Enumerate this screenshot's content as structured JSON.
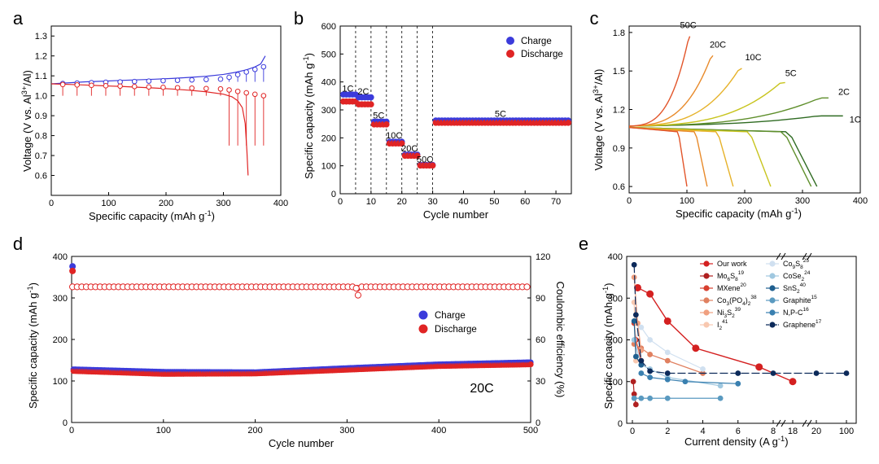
{
  "colors": {
    "charge": "#3b3bdb",
    "discharge": "#e02424",
    "axis": "#000000"
  },
  "chart_data": [
    {
      "id": "a",
      "type": "line",
      "panel_letter": "a",
      "xlabel": "Specific capacity (mAh g⁻¹)",
      "ylabel": "Voltage (V vs. Al³⁺/Al)",
      "xlim": [
        0,
        400
      ],
      "ylim": [
        0.5,
        1.35
      ],
      "xticks": [
        0,
        100,
        200,
        300,
        400
      ],
      "yticks": [
        0.6,
        0.7,
        0.8,
        0.9,
        1.0,
        1.1,
        1.2,
        1.3
      ],
      "series": [
        {
          "name": "Charge",
          "color": "#3b3bdb",
          "x": [
            0,
            30,
            60,
            90,
            120,
            150,
            180,
            210,
            240,
            270,
            300,
            320,
            340,
            355,
            365,
            373
          ],
          "y": [
            1.06,
            1.065,
            1.07,
            1.073,
            1.077,
            1.08,
            1.083,
            1.087,
            1.092,
            1.098,
            1.107,
            1.117,
            1.13,
            1.145,
            1.16,
            1.2
          ]
        },
        {
          "name": "Discharge",
          "color": "#e02424",
          "x": [
            0,
            30,
            60,
            90,
            120,
            150,
            180,
            210,
            240,
            270,
            300,
            315,
            325,
            333,
            338,
            341,
            343
          ],
          "y": [
            1.06,
            1.057,
            1.054,
            1.05,
            1.047,
            1.043,
            1.039,
            1.034,
            1.028,
            1.02,
            1.008,
            0.995,
            0.975,
            0.94,
            0.86,
            0.72,
            0.6
          ]
        }
      ]
    },
    {
      "id": "b",
      "type": "scatter",
      "panel_letter": "b",
      "xlabel": "Cycle number",
      "ylabel": "Specific capacity (mAh g⁻¹)",
      "xlim": [
        0,
        75
      ],
      "ylim": [
        0,
        600
      ],
      "xticks": [
        0,
        10,
        20,
        30,
        40,
        50,
        60,
        70
      ],
      "yticks": [
        0,
        100,
        200,
        300,
        400,
        500,
        600
      ],
      "dividers": [
        5,
        10,
        15,
        20,
        25,
        30
      ],
      "segments": [
        {
          "rate": "1C",
          "start": 1,
          "end": 5,
          "charge": 355,
          "discharge": 330
        },
        {
          "rate": "2C",
          "start": 6,
          "end": 10,
          "charge": 345,
          "discharge": 320
        },
        {
          "rate": "5C",
          "start": 11,
          "end": 15,
          "charge": 258,
          "discharge": 248
        },
        {
          "rate": "10C",
          "start": 16,
          "end": 20,
          "charge": 186,
          "discharge": 180
        },
        {
          "rate": "20C",
          "start": 21,
          "end": 25,
          "charge": 140,
          "discharge": 136
        },
        {
          "rate": "50C",
          "start": 26,
          "end": 30,
          "charge": 103,
          "discharge": 101
        },
        {
          "rate": "5C",
          "start": 31,
          "end": 74,
          "charge": 262,
          "discharge": 254
        }
      ],
      "rate_labels": [
        {
          "text": "1C",
          "x": 2.5,
          "y": 365
        },
        {
          "text": "2C",
          "x": 7.5,
          "y": 355
        },
        {
          "text": "5C",
          "x": 12.5,
          "y": 270
        },
        {
          "text": "10C",
          "x": 17.5,
          "y": 198
        },
        {
          "text": "20C",
          "x": 22.5,
          "y": 152
        },
        {
          "text": "50C",
          "x": 27.5,
          "y": 112
        },
        {
          "text": "5C",
          "x": 52,
          "y": 275
        }
      ],
      "legend": [
        "Charge",
        "Discharge"
      ]
    },
    {
      "id": "c",
      "type": "line",
      "panel_letter": "c",
      "xlabel": "Specific capacity (mAh g⁻¹)",
      "ylabel": "Voltage (V vs. Al³⁺/Al)",
      "xlim": [
        0,
        400
      ],
      "ylim": [
        0.55,
        1.85
      ],
      "xticks": [
        0,
        100,
        200,
        300,
        400
      ],
      "yticks": [
        0.6,
        0.9,
        1.2,
        1.5,
        1.8
      ],
      "series": [
        {
          "name": "1C",
          "color": "#2f6b22",
          "charge_cap": 370,
          "charge_end": 1.15,
          "discharge_cap": 325
        },
        {
          "name": "2C",
          "color": "#5f8f2c",
          "charge_cap": 345,
          "charge_end": 1.29,
          "discharge_cap": 315
        },
        {
          "name": "5C",
          "color": "#c8c41e",
          "charge_cap": 270,
          "charge_end": 1.41,
          "discharge_cap": 245
        },
        {
          "name": "10C",
          "color": "#e6b22a",
          "charge_cap": 195,
          "charge_end": 1.52,
          "discharge_cap": 180
        },
        {
          "name": "20C",
          "color": "#e88a2a",
          "charge_cap": 145,
          "charge_end": 1.62,
          "discharge_cap": 135
        },
        {
          "name": "50C",
          "color": "#e2552a",
          "charge_cap": 105,
          "charge_end": 1.77,
          "discharge_cap": 100
        }
      ]
    },
    {
      "id": "d",
      "type": "scatter",
      "panel_letter": "d",
      "xlabel": "Cycle number",
      "ylabel": "Specific capacity (mAh g⁻¹)",
      "y2label": "Coulombic efficiency (%)",
      "xlim": [
        0,
        500
      ],
      "ylim": [
        0,
        400
      ],
      "y2lim": [
        0,
        120
      ],
      "xticks": [
        0,
        100,
        200,
        300,
        400,
        500
      ],
      "yticks": [
        0,
        100,
        200,
        300,
        400
      ],
      "y2ticks": [
        0,
        30,
        60,
        90,
        120
      ],
      "charge_points": [
        [
          1,
          376
        ],
        [
          2,
          128
        ],
        [
          100,
          122
        ],
        [
          200,
          121
        ],
        [
          300,
          131
        ],
        [
          400,
          140
        ],
        [
          500,
          145
        ]
      ],
      "discharge_points": [
        [
          1,
          365
        ],
        [
          2,
          124
        ],
        [
          100,
          117
        ],
        [
          200,
          118
        ],
        [
          300,
          127
        ],
        [
          400,
          136
        ],
        [
          500,
          140
        ]
      ],
      "coulombic_efficiency": {
        "typical": 98,
        "dips": [
          [
            310,
            97
          ],
          [
            312,
            92
          ]
        ]
      },
      "annotation": "20C",
      "legend": [
        "Charge",
        "Discharge"
      ]
    },
    {
      "id": "e",
      "type": "scatter",
      "panel_letter": "e",
      "xlabel": "Current density (A g⁻¹)",
      "ylabel": "Specific capacity (mAh g⁻¹)",
      "ylim": [
        0,
        400
      ],
      "yticks": [
        0,
        100,
        200,
        300,
        400
      ],
      "x_segments": [
        {
          "range": [
            0,
            18
          ],
          "ticks": [
            0,
            2,
            4,
            6,
            8,
            18
          ]
        },
        {
          "range": [
            18,
            100
          ],
          "ticks": [
            20,
            100
          ]
        }
      ],
      "series": [
        {
          "name": "Our work",
          "sup": "",
          "sub": "",
          "color": "#d42020",
          "x": [
            0.3,
            1,
            2,
            3.6,
            7.2,
            18
          ],
          "y": [
            325,
            310,
            245,
            180,
            135,
            100
          ]
        },
        {
          "name": "Mo",
          "sub": "6",
          "name2": "S",
          "sub2": "8",
          "sup": "19",
          "color": "#b02020",
          "x": [
            0.05,
            0.1,
            0.2
          ],
          "y": [
            100,
            70,
            45
          ]
        },
        {
          "name": "MXene",
          "sup": "20",
          "sub": "",
          "color": "#d74030",
          "x": [
            0.1,
            0.2,
            0.5
          ],
          "y": [
            240,
            200,
            150
          ]
        },
        {
          "name": "Co",
          "sub": "3",
          "name2": "(PO",
          "sub2": "4",
          "name3": ")",
          "sub3": "2",
          "sup": "38",
          "color": "#e08060",
          "x": [
            0.1,
            0.5,
            1,
            2,
            4
          ],
          "y": [
            190,
            180,
            165,
            150,
            120
          ]
        },
        {
          "name": "Ni",
          "sub": "3",
          "name2": "S",
          "sub2": "2",
          "sup": "39",
          "color": "#f0a080",
          "x": [
            0.1,
            0.3,
            0.5
          ],
          "y": [
            350,
            240,
            175
          ]
        },
        {
          "name": "I",
          "sub": "2",
          "sup": "41",
          "color": "#f8c8b0",
          "x": [
            0.1,
            0.2
          ],
          "y": [
            290,
            150
          ]
        },
        {
          "name": "Co",
          "sub": "9",
          "name2": "S",
          "sub2": "8",
          "sup": "25",
          "color": "#d0e0f0",
          "x": [
            0.5,
            1,
            2,
            4
          ],
          "y": [
            230,
            200,
            170,
            130
          ]
        },
        {
          "name": "CoSe",
          "sub": "2",
          "sup": "24",
          "color": "#a0c8e0",
          "x": [
            0.1,
            0.5,
            1,
            2,
            5
          ],
          "y": [
            200,
            140,
            130,
            110,
            90
          ]
        },
        {
          "name": "SnS",
          "sub": "2",
          "sup": "40",
          "color": "#1f5f8f",
          "x": [
            0.1,
            0.2,
            0.5
          ],
          "y": [
            245,
            160,
            140
          ]
        },
        {
          "name": "Graphite",
          "sup": "15",
          "sub": "",
          "color": "#5a9ac0",
          "x": [
            0.1,
            0.5,
            1,
            2,
            5
          ],
          "y": [
            60,
            60,
            60,
            60,
            60
          ]
        },
        {
          "name": "N,P-C",
          "sup": "16",
          "sub": "",
          "color": "#3a80b0",
          "x": [
            0.5,
            1,
            2,
            3,
            6
          ],
          "y": [
            120,
            110,
            105,
            100,
            95
          ]
        },
        {
          "name": "Graphene",
          "sup": "17",
          "sub": "",
          "color": "#0c2a5a",
          "x": [
            0.1,
            0.2,
            0.5,
            1,
            2,
            6,
            8,
            20,
            100
          ],
          "y": [
            380,
            260,
            150,
            125,
            120,
            120,
            120,
            120,
            120
          ]
        }
      ]
    }
  ]
}
